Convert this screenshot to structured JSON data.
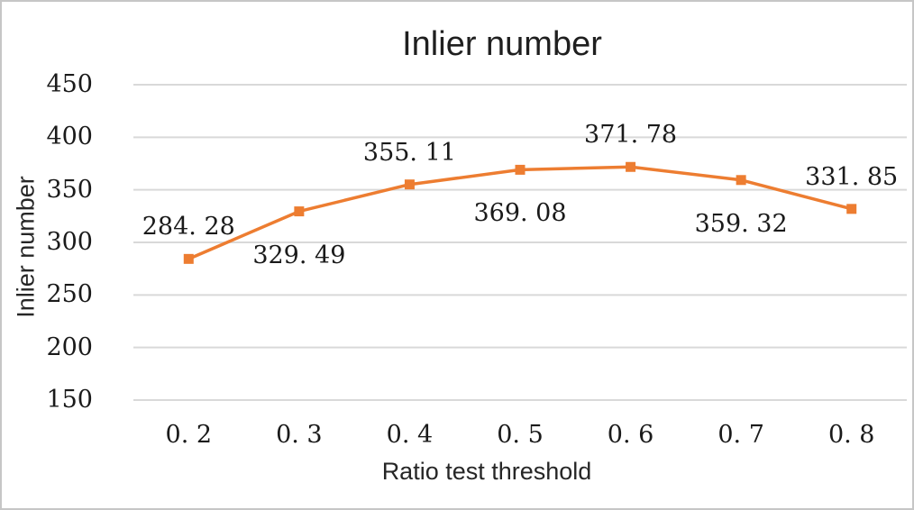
{
  "chart": {
    "title": "Inlier number",
    "x_axis_title": "Ratio test threshold",
    "y_axis_title": "Inlier number",
    "colors": {
      "series": "#ED7D31",
      "gridline": "#D9D9D9",
      "text": "#1a1a1a",
      "frame_border": "#c6c6c6",
      "background": "#ffffff"
    }
  },
  "chart_data": {
    "type": "line",
    "title": "Inlier number",
    "xlabel": "Ratio test threshold",
    "ylabel": "Inlier number",
    "categories": [
      "0.2",
      "0.3",
      "0.4",
      "0.5",
      "0.6",
      "0.7",
      "0.8"
    ],
    "category_display_labels": [
      "0. 2",
      "0. 3",
      "0. 4",
      "0. 5",
      "0. 6",
      "0. 7",
      "0. 8"
    ],
    "series": [
      {
        "name": "Inlier number",
        "values": [
          284.28,
          329.49,
          355.11,
          369.08,
          371.78,
          359.32,
          331.85
        ],
        "data_display_labels": [
          "284. 28",
          "329. 49",
          "355. 11",
          "369. 08",
          "371. 78",
          "359. 32",
          "331. 85"
        ],
        "label_positions": [
          "above",
          "below",
          "above",
          "below",
          "above",
          "below",
          "above"
        ],
        "color": "#ED7D31",
        "marker": "square"
      }
    ],
    "y_ticks": [
      150,
      200,
      250,
      300,
      350,
      400,
      450
    ],
    "ylim": [
      150,
      450
    ],
    "grid": true,
    "legend_position": "none"
  }
}
